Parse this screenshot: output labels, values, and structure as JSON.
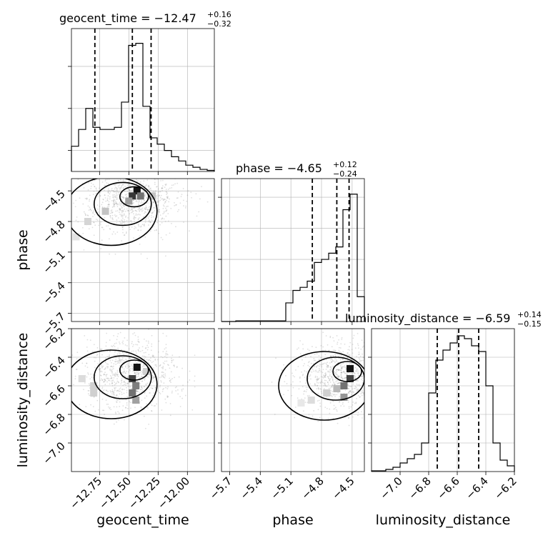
{
  "chart_data": {
    "type": "corner",
    "parameters": [
      "geocent_time",
      "phase",
      "luminosity_distance"
    ],
    "titles": [
      {
        "param": "geocent_time",
        "text": "geocent_time = −12.47",
        "plus": "+0.16",
        "minus": "−0.32"
      },
      {
        "param": "phase",
        "text": "phase = −4.65",
        "plus": "+0.12",
        "minus": "−0.24"
      },
      {
        "param": "luminosity_distance",
        "text": "luminosity_distance = −6.59",
        "plus": "+0.14",
        "minus": "−0.15"
      }
    ],
    "axes": {
      "geocent_time": {
        "range": [
          -12.99,
          -11.77
        ],
        "ticks": [
          -12.75,
          -12.5,
          -12.25,
          -12.0
        ],
        "tick_labels": [
          "−12.75",
          "−12.50",
          "−12.25",
          "−12.00"
        ]
      },
      "phase": {
        "range": [
          -5.78,
          -4.38
        ],
        "ticks": [
          -5.7,
          -5.4,
          -5.1,
          -4.8,
          -4.5
        ],
        "tick_labels": [
          "−5.7",
          "−5.4",
          "−5.1",
          "−4.8",
          "−4.5"
        ]
      },
      "luminosity_distance": {
        "range": [
          -7.2,
          -6.2
        ],
        "ticks": [
          -7.0,
          -6.8,
          -6.6,
          -6.4,
          -6.2
        ],
        "tick_labels": [
          "−7.0",
          "−6.8",
          "−6.6",
          "−6.4",
          "−6.2"
        ]
      }
    },
    "axis_labels": {
      "geocent_time": "geocent_time",
      "phase": "phase",
      "luminosity_distance": "luminosity_distance"
    },
    "histograms": {
      "geocent_time": {
        "edges": [
          -12.99,
          -12.929,
          -12.868,
          -12.807,
          -12.746,
          -12.685,
          -12.624,
          -12.563,
          -12.502,
          -12.441,
          -12.38,
          -12.319,
          -12.258,
          -12.197,
          -12.136,
          -12.075,
          -12.014,
          -11.953,
          -11.892,
          -11.831,
          -11.77
        ],
        "counts": [
          0.12,
          0.2,
          0.3,
          0.21,
          0.2,
          0.2,
          0.21,
          0.33,
          0.6,
          0.61,
          0.31,
          0.16,
          0.13,
          0.1,
          0.07,
          0.05,
          0.03,
          0.02,
          0.01,
          0.005
        ],
        "ymax": 0.68,
        "quantiles": [
          -12.79,
          -12.47,
          -12.31
        ],
        "y_ticks": [
          0.1,
          0.3,
          0.5
        ]
      },
      "phase": {
        "edges": [
          -5.78,
          -5.71,
          -5.64,
          -5.57,
          -5.5,
          -5.43,
          -5.36,
          -5.29,
          -5.22,
          -5.15,
          -5.08,
          -5.01,
          -4.94,
          -4.87,
          -4.8,
          -4.73,
          -4.66,
          -4.59,
          -4.52,
          -4.45,
          -4.38
        ],
        "counts": [
          0,
          0,
          0.002,
          0.002,
          0.002,
          0.002,
          0.002,
          0.002,
          0.002,
          0.06,
          0.1,
          0.11,
          0.13,
          0.19,
          0.2,
          0.22,
          0.24,
          0.36,
          0.41,
          0.08
        ],
        "ymax": 0.46,
        "quantiles": [
          -4.89,
          -4.65,
          -4.53
        ],
        "y_ticks": [
          0.1,
          0.2,
          0.3,
          0.4
        ]
      },
      "luminosity_distance": {
        "edges": [
          -7.2,
          -7.15,
          -7.1,
          -7.05,
          -7.0,
          -6.95,
          -6.9,
          -6.85,
          -6.8,
          -6.75,
          -6.7,
          -6.65,
          -6.6,
          -6.55,
          -6.5,
          -6.45,
          -6.4,
          -6.35,
          -6.3,
          -6.25,
          -6.2
        ],
        "counts": [
          0.005,
          0.005,
          0.015,
          0.03,
          0.06,
          0.09,
          0.12,
          0.2,
          0.55,
          0.78,
          0.85,
          0.9,
          0.95,
          0.93,
          0.88,
          0.84,
          0.6,
          0.2,
          0.08,
          0.04
        ],
        "ymax": 1.0,
        "quantiles": [
          -6.74,
          -6.59,
          -6.45
        ],
        "y_ticks": [
          0.2,
          0.4,
          0.6,
          0.8
        ]
      }
    },
    "joint": {
      "phase_vs_geocent_time": {
        "x": "geocent_time",
        "y": "phase",
        "peak": [
          -12.43,
          -4.53
        ],
        "contour_centers": [
          [
            -12.45,
            -4.52
          ],
          [
            -12.6,
            -4.68
          ]
        ],
        "density_cells": [
          [
            -12.43,
            -4.5,
            1.0
          ],
          [
            -12.47,
            -4.55,
            0.85
          ],
          [
            -12.4,
            -4.55,
            0.6
          ],
          [
            -12.5,
            -4.6,
            0.4
          ],
          [
            -12.7,
            -4.7,
            0.25
          ],
          [
            -12.85,
            -4.8,
            0.18
          ],
          [
            -12.3,
            -4.55,
            0.25
          ],
          [
            -12.95,
            -4.95,
            0.12
          ]
        ]
      },
      "luminosity_distance_vs_geocent_time": {
        "x": "geocent_time",
        "y": "luminosity_distance",
        "peak": [
          -12.43,
          -6.47
        ],
        "density_cells": [
          [
            -12.43,
            -6.47,
            1.0
          ],
          [
            -12.47,
            -6.55,
            0.8
          ],
          [
            -12.47,
            -6.65,
            0.6
          ],
          [
            -12.44,
            -6.6,
            0.55
          ],
          [
            -12.44,
            -6.7,
            0.4
          ],
          [
            -12.8,
            -6.6,
            0.2
          ],
          [
            -12.8,
            -6.65,
            0.2
          ],
          [
            -12.9,
            -6.55,
            0.15
          ],
          [
            -12.35,
            -6.5,
            0.2
          ]
        ]
      },
      "luminosity_distance_vs_phase": {
        "x": "phase",
        "y": "luminosity_distance",
        "peak": [
          -4.52,
          -6.48
        ],
        "density_cells": [
          [
            -4.52,
            -6.48,
            1.0
          ],
          [
            -4.52,
            -6.55,
            0.8
          ],
          [
            -4.58,
            -6.6,
            0.6
          ],
          [
            -4.58,
            -6.68,
            0.45
          ],
          [
            -4.65,
            -6.62,
            0.3
          ],
          [
            -4.75,
            -6.65,
            0.2
          ],
          [
            -4.9,
            -6.7,
            0.15
          ],
          [
            -5.0,
            -6.72,
            0.1
          ]
        ]
      }
    },
    "grid": true,
    "colors": {
      "line": "#000000",
      "grid": "#b0b0b0",
      "scatter": "#808080"
    }
  }
}
